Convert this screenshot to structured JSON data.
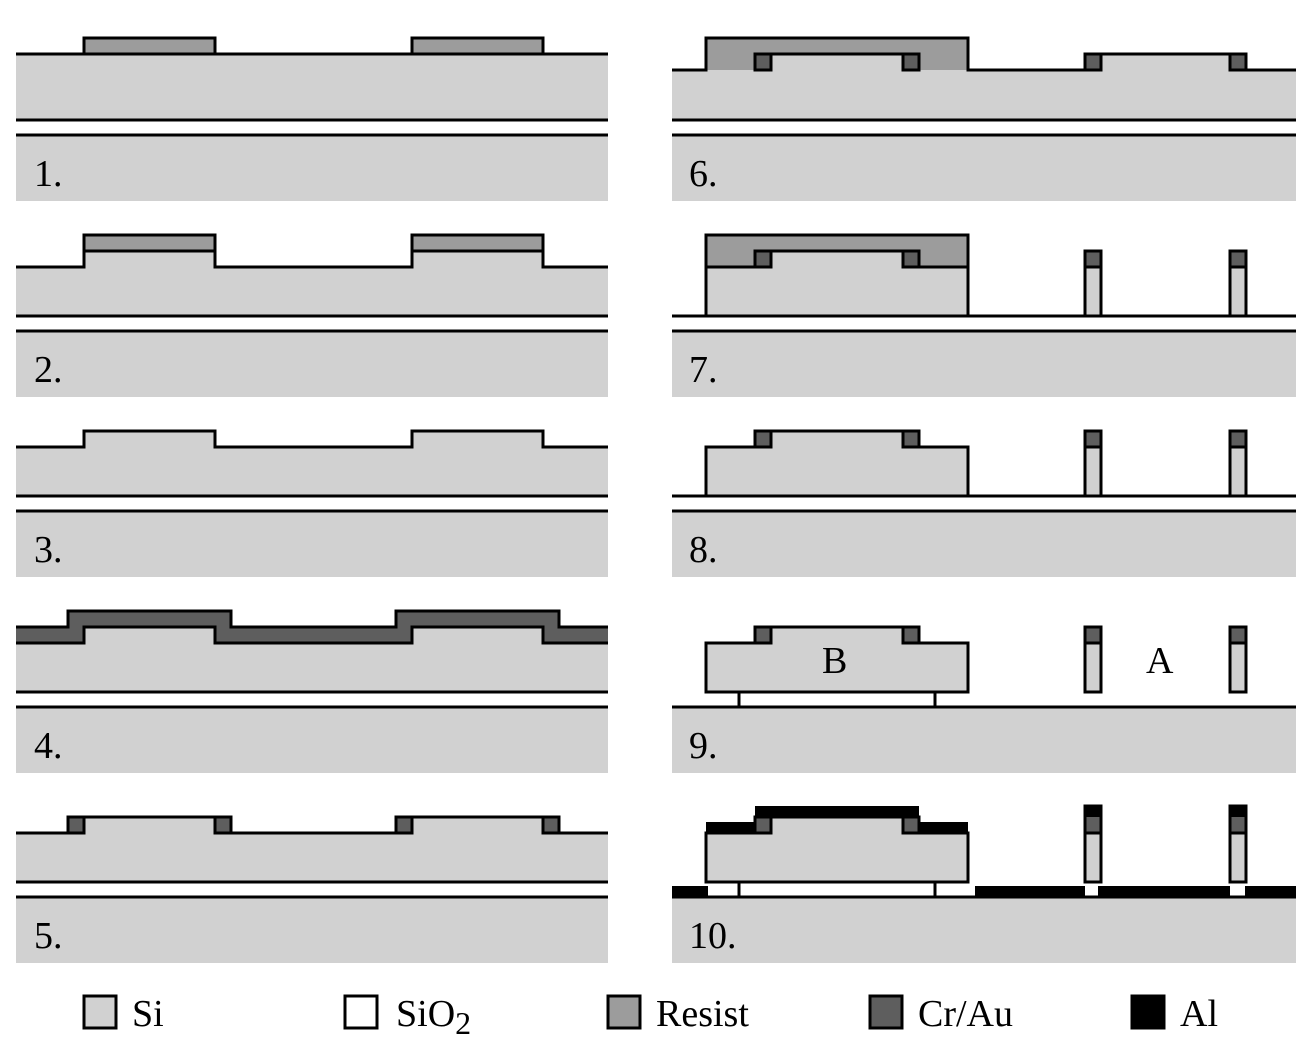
{
  "steps": [
    {
      "label": "1."
    },
    {
      "label": "2."
    },
    {
      "label": "3."
    },
    {
      "label": "4."
    },
    {
      "label": "5."
    },
    {
      "label": "6."
    },
    {
      "label": "7."
    },
    {
      "label": "8."
    },
    {
      "label": "9."
    },
    {
      "label": "10."
    }
  ],
  "regions": {
    "b": "B",
    "a": "A"
  },
  "legend": [
    {
      "label": "Si",
      "color": "#d1d1d1"
    },
    {
      "label": "SiO",
      "subscript": "2",
      "color": "#ffffff"
    },
    {
      "label": "Resist",
      "color": "#9c9c9c"
    },
    {
      "label": "Cr/Au",
      "color": "#5e5e5e"
    },
    {
      "label": "Al",
      "color": "#000000"
    }
  ]
}
